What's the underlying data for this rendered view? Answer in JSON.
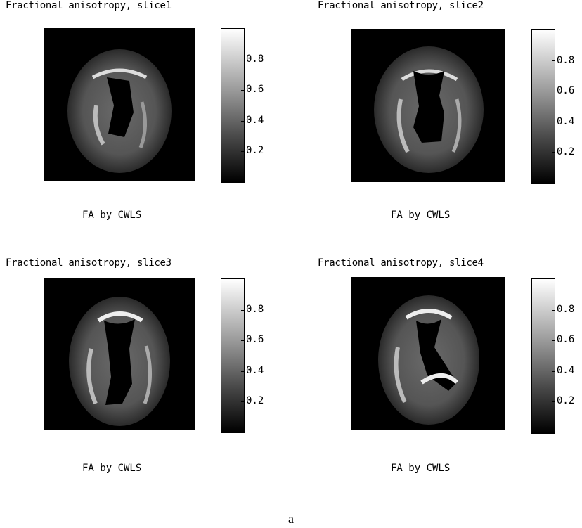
{
  "panels": [
    {
      "title": "Fractional anisotropy, slice1",
      "xlabel": "FA by CWLS"
    },
    {
      "title": "Fractional anisotropy, slice2",
      "xlabel": "FA by CWLS"
    },
    {
      "title": "Fractional anisotropy, slice3",
      "xlabel": "FA by CWLS"
    },
    {
      "title": "Fractional anisotropy, slice4",
      "xlabel": "FA by CWLS"
    }
  ],
  "colorbar": {
    "ticks": [
      "0.8",
      "0.6",
      "0.4",
      "0.2"
    ],
    "colormap": "gray"
  },
  "caption": "a"
}
